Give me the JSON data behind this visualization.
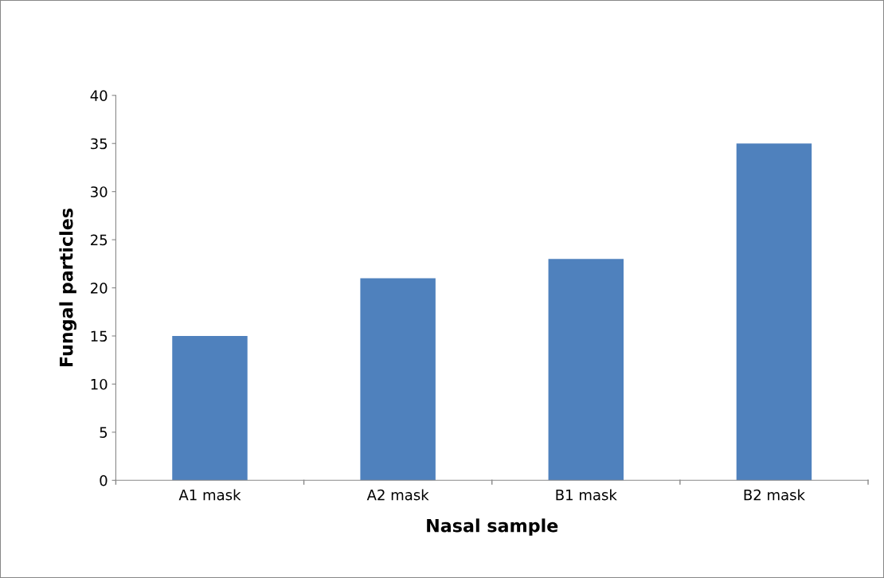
{
  "chart_data": {
    "type": "bar",
    "xlabel": "Nasal sample",
    "ylabel": "Fungal particles",
    "categories": [
      "A1 mask",
      "A2 mask",
      "B1 mask",
      "B2 mask"
    ],
    "values": [
      15,
      21,
      23,
      35
    ],
    "color": "#4f81bd",
    "ylim": [
      0,
      40
    ],
    "yticks": [
      0,
      5,
      10,
      15,
      20,
      25,
      30,
      35,
      40
    ],
    "grid": false,
    "legend": false
  }
}
